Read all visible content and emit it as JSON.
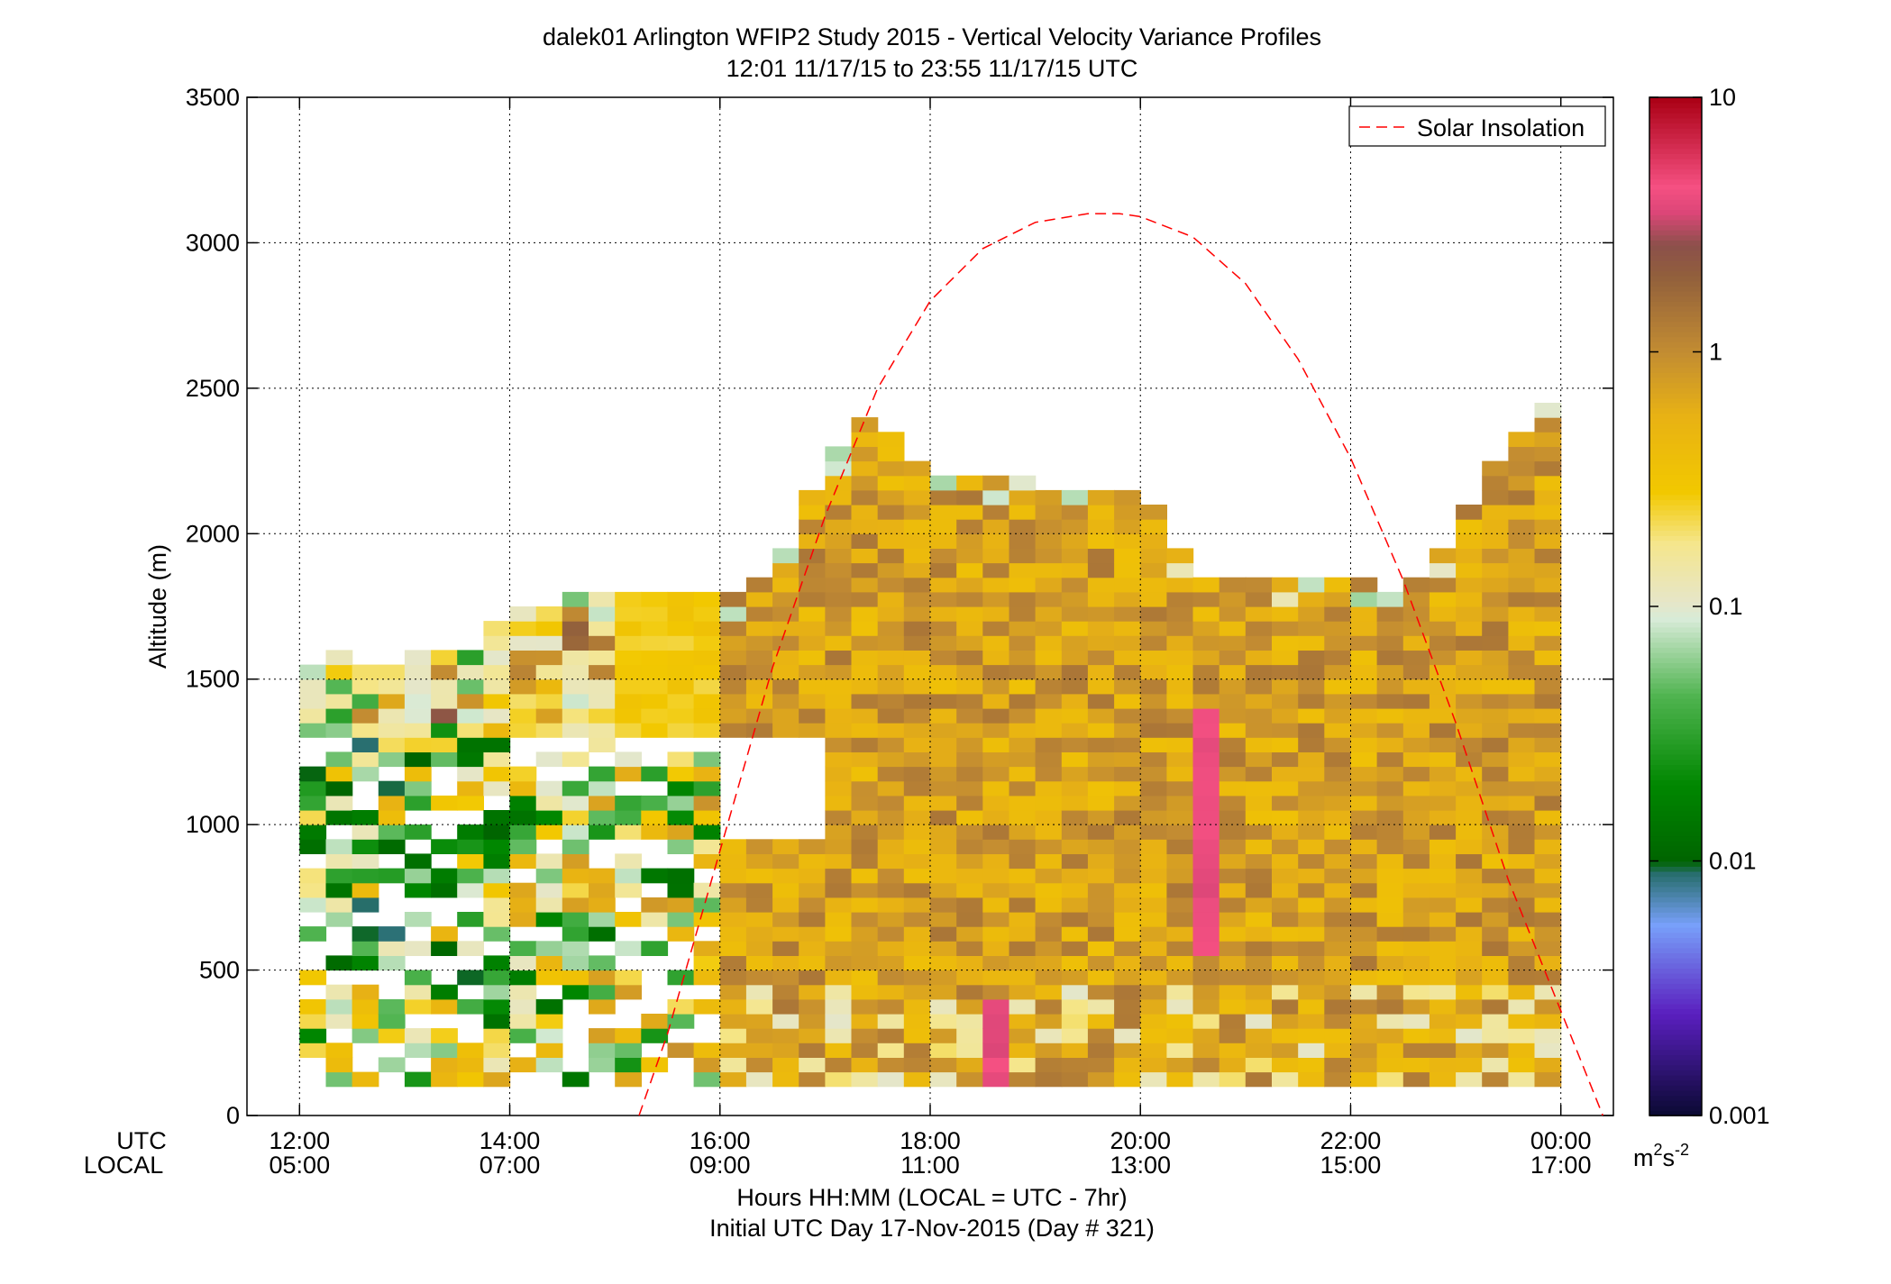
{
  "title": "dalek01 Arlington WFIP2 Study 2015 - Vertical Velocity Variance Profiles",
  "subtitle": "12:01 11/17/15 to 23:55 11/17/15  UTC",
  "ylabel": "Altitude (m)",
  "xlabel": "Hours HH:MM  (LOCAL = UTC - 7hr)",
  "xlabel2": "Initial UTC Day 17-Nov-2015 (Day # 321)",
  "row_label_utc": "UTC",
  "row_label_local": "LOCAL",
  "colorbar_unit_base": "m",
  "colorbar_unit_exp1": "2",
  "colorbar_unit_mid": "s",
  "colorbar_unit_exp2": "-2",
  "legend_label": "Solar Insolation",
  "colors": {
    "solar": "#ff0000",
    "grid": "#000000"
  },
  "chart_data": {
    "type": "heatmap",
    "title": "dalek01 Arlington WFIP2 Study 2015 - Vertical Velocity Variance Profiles",
    "xlabel": "Hours HH:MM  (LOCAL = UTC - 7hr)",
    "ylabel": "Altitude (m)",
    "x_utc_hours_range": [
      11.5,
      24.5
    ],
    "ylim": [
      0,
      3500
    ],
    "x_ticks_utc": [
      "12:00",
      "14:00",
      "16:00",
      "18:00",
      "20:00",
      "22:00",
      "00:00"
    ],
    "x_ticks_local": [
      "05:00",
      "07:00",
      "09:00",
      "11:00",
      "13:00",
      "15:00",
      "17:00"
    ],
    "x_tick_hours": [
      12,
      14,
      16,
      18,
      20,
      22,
      24
    ],
    "y_ticks": [
      0,
      500,
      1000,
      1500,
      2000,
      2500,
      3000,
      3500
    ],
    "colorbar": {
      "scale": "log",
      "range": [
        0.001,
        10
      ],
      "ticks": [
        "0.001",
        "0.01",
        "0.1",
        "1",
        "10"
      ]
    },
    "range_gates_m": {
      "first": 100,
      "spacing": 50
    },
    "profile_tops_m": [
      {
        "utc": "12:01",
        "top": 1500
      },
      {
        "utc": "12:30",
        "top": 1600
      },
      {
        "utc": "12:45",
        "top": 1500
      },
      {
        "utc": "13:00",
        "top": 1600
      },
      {
        "utc": "13:30",
        "top": 1550
      },
      {
        "utc": "14:00",
        "top": 1750
      },
      {
        "utc": "14:30",
        "top": 1750
      },
      {
        "utc": "15:00",
        "top": 1800
      },
      {
        "utc": "15:30",
        "top": 1800
      },
      {
        "utc": "16:00",
        "top": 1750
      },
      {
        "utc": "16:30",
        "top": 1850
      },
      {
        "utc": "17:00",
        "top": 2250
      },
      {
        "utc": "17:30",
        "top": 2400
      },
      {
        "utc": "18:00",
        "top": 2200
      },
      {
        "utc": "18:30",
        "top": 2200
      },
      {
        "utc": "19:00",
        "top": 2150
      },
      {
        "utc": "19:30",
        "top": 2150
      },
      {
        "utc": "20:00",
        "top": 2150
      },
      {
        "utc": "20:30",
        "top": 1850
      },
      {
        "utc": "21:00",
        "top": 1850
      },
      {
        "utc": "21:30",
        "top": 1800
      },
      {
        "utc": "22:00",
        "top": 1850
      },
      {
        "utc": "22:30",
        "top": 1750
      },
      {
        "utc": "23:00",
        "top": 2000
      },
      {
        "utc": "23:30",
        "top": 2300
      },
      {
        "utc": "23:55",
        "top": 2450
      }
    ],
    "variance_regime_m2s2": [
      {
        "window_utc": "12:00-16:00",
        "typical_low": 0.005,
        "typical_high": 0.3
      },
      {
        "window_utc": "16:00-24:00",
        "typical_low": 0.2,
        "typical_high": 2
      },
      {
        "window_utc": "18:30",
        "peak": 3
      },
      {
        "window_utc": "20:30-20:45",
        "peak": 4
      }
    ],
    "series": [
      {
        "name": "Solar Insolation",
        "style": "dashed",
        "x_utc_hours": [
          15.23,
          15.5,
          16,
          16.5,
          17,
          17.5,
          18,
          18.5,
          19,
          19.5,
          19.8,
          20,
          20.5,
          21,
          21.5,
          22,
          22.5,
          23,
          23.5,
          24,
          24.4
        ],
        "y": [
          0,
          280,
          910,
          1540,
          2060,
          2500,
          2800,
          2980,
          3070,
          3100,
          3100,
          3090,
          3020,
          2860,
          2600,
          2260,
          1840,
          1350,
          810,
          360,
          0
        ]
      }
    ]
  }
}
